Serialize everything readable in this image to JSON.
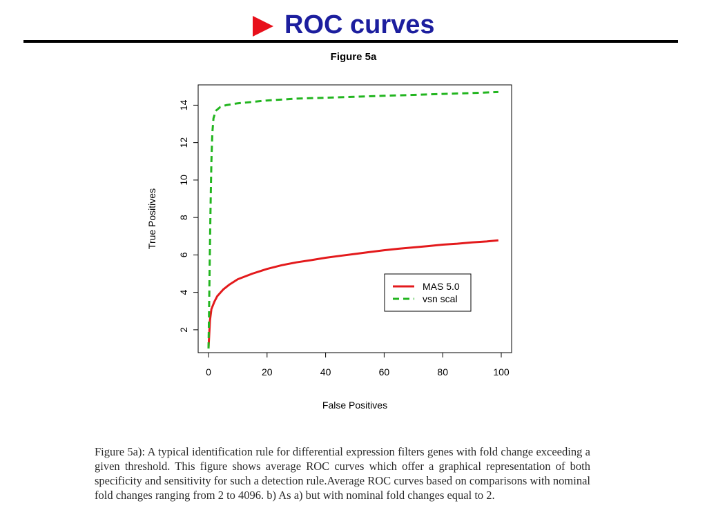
{
  "slide": {
    "title": "ROC curves",
    "bullet_icon": "red-triangle-bullet",
    "bullet_color": "#e8101b",
    "title_color": "#1c1e9e"
  },
  "chart_data": {
    "type": "line",
    "title": "Figure 5a",
    "xlabel": "False Positives",
    "ylabel": "True Positives",
    "xlim": [
      0,
      100
    ],
    "ylim": [
      1,
      14.9
    ],
    "x_ticks": [
      "0",
      "20",
      "40",
      "60",
      "80",
      "100"
    ],
    "y_ticks": [
      "2",
      "4",
      "6",
      "8",
      "10",
      "12",
      "14"
    ],
    "grid": false,
    "legend_position": "lower-right",
    "series": [
      {
        "name": "MAS 5.0",
        "color": "#e31a1c",
        "dash": "solid",
        "points": [
          [
            0,
            1
          ],
          [
            0.5,
            2.5
          ],
          [
            1,
            3.1
          ],
          [
            2,
            3.5
          ],
          [
            3,
            3.8
          ],
          [
            5,
            4.15
          ],
          [
            7,
            4.4
          ],
          [
            10,
            4.7
          ],
          [
            15,
            5.0
          ],
          [
            20,
            5.25
          ],
          [
            25,
            5.45
          ],
          [
            30,
            5.6
          ],
          [
            35,
            5.72
          ],
          [
            40,
            5.85
          ],
          [
            45,
            5.95
          ],
          [
            50,
            6.05
          ],
          [
            55,
            6.15
          ],
          [
            60,
            6.25
          ],
          [
            65,
            6.33
          ],
          [
            70,
            6.4
          ],
          [
            75,
            6.47
          ],
          [
            80,
            6.55
          ],
          [
            85,
            6.6
          ],
          [
            90,
            6.67
          ],
          [
            95,
            6.72
          ],
          [
            99,
            6.78
          ]
        ]
      },
      {
        "name": "vsn scal",
        "color": "#22b51f",
        "dash": "dashed",
        "points": [
          [
            0,
            1
          ],
          [
            0.2,
            3
          ],
          [
            0.4,
            5.5
          ],
          [
            0.6,
            7.5
          ],
          [
            0.8,
            9.5
          ],
          [
            1,
            11
          ],
          [
            1.3,
            12.5
          ],
          [
            1.7,
            13.3
          ],
          [
            2.5,
            13.7
          ],
          [
            4,
            13.9
          ],
          [
            6,
            14.0
          ],
          [
            10,
            14.1
          ],
          [
            20,
            14.25
          ],
          [
            30,
            14.35
          ],
          [
            40,
            14.4
          ],
          [
            50,
            14.45
          ],
          [
            60,
            14.5
          ],
          [
            70,
            14.55
          ],
          [
            80,
            14.6
          ],
          [
            90,
            14.65
          ],
          [
            99,
            14.7
          ]
        ]
      }
    ]
  },
  "caption": {
    "text": "Figure 5a): A typical identification rule for differential expression filters genes with fold change exceeding a given threshold. This figure shows average ROC curves which offer a graphical representation of both specificity and sensitivity for such a detection rule.Average ROC curves based on comparisons with nominal fold changes ranging from 2 to 4096. b) As a) but with nominal fold changes equal to 2."
  }
}
